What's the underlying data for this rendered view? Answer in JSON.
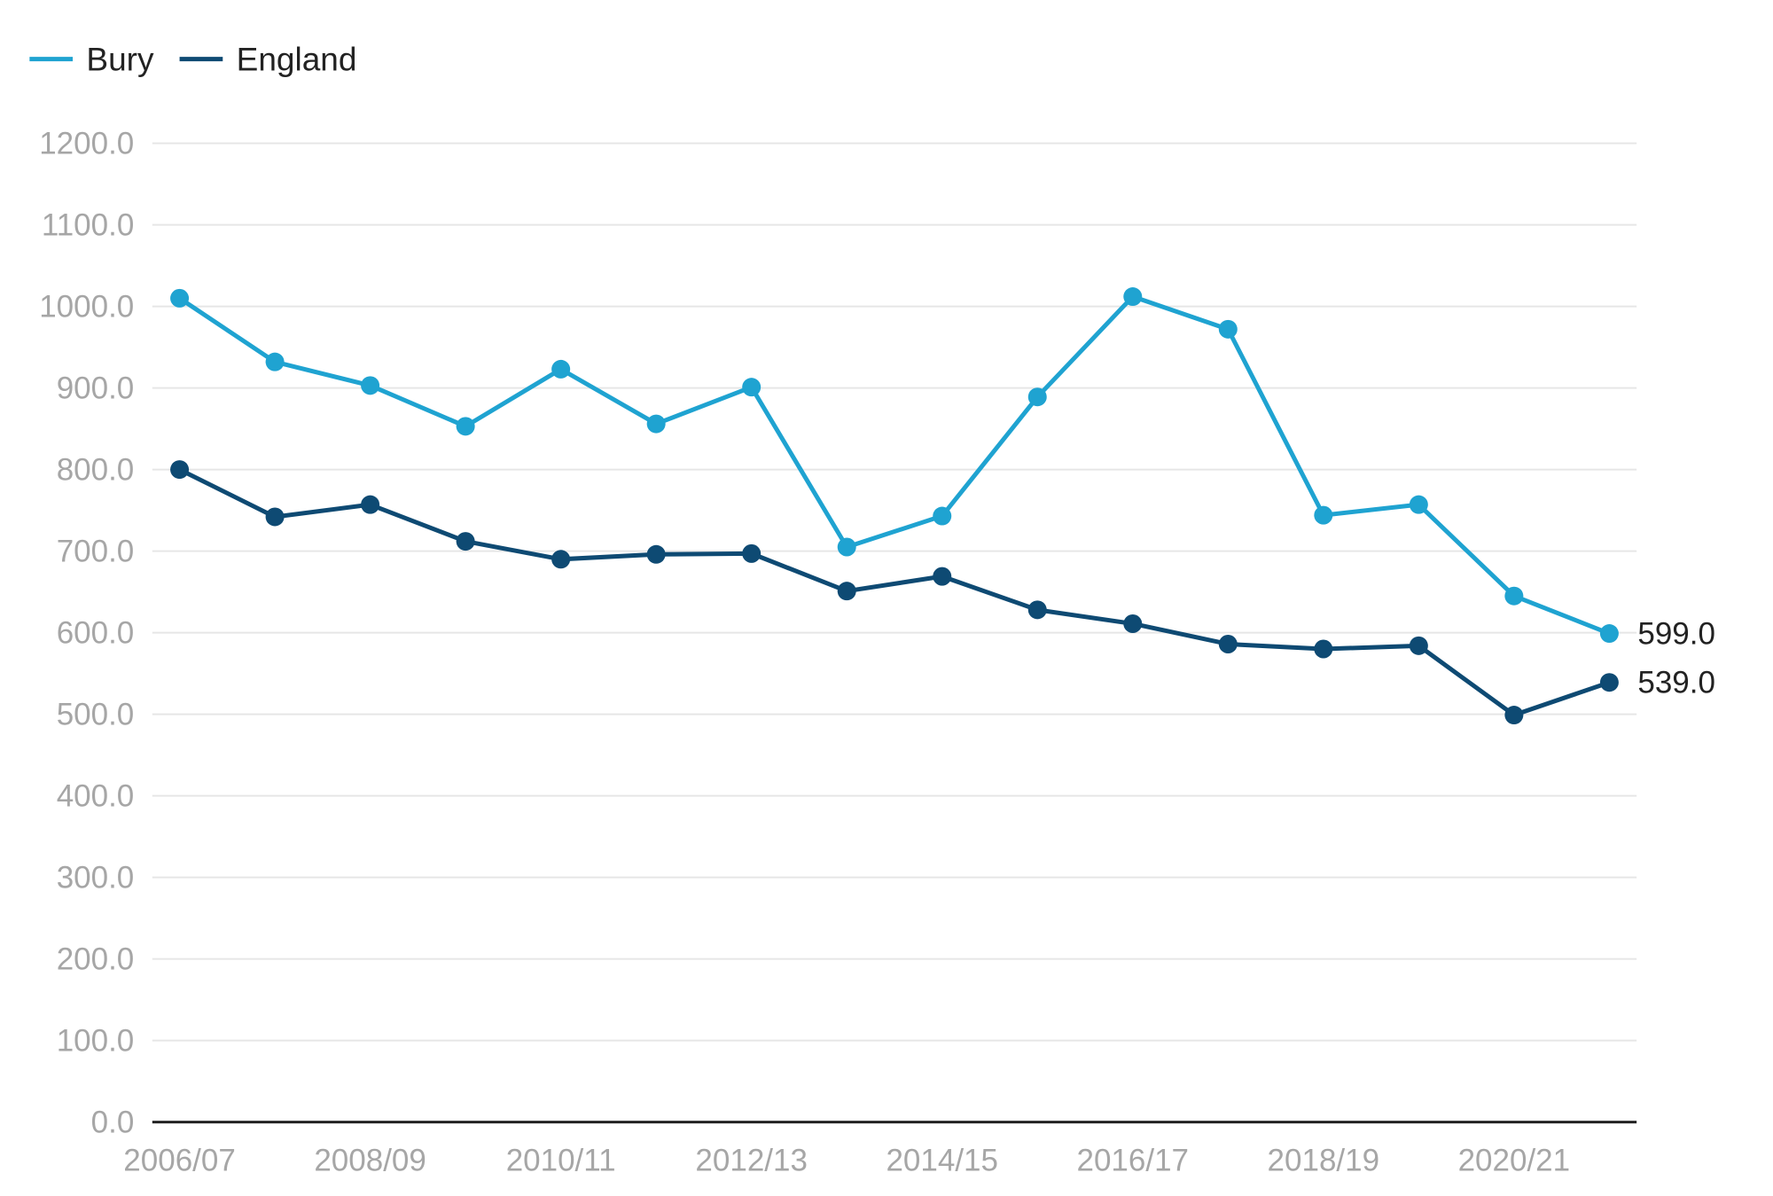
{
  "chart_data": {
    "type": "line",
    "categories": [
      "2006/07",
      "2007/08",
      "2008/09",
      "2009/10",
      "2010/11",
      "2011/12",
      "2012/13",
      "2013/14",
      "2014/15",
      "2015/16",
      "2016/17",
      "2017/18",
      "2018/19",
      "2019/20",
      "2020/21",
      "2021/22"
    ],
    "x_tick_labels": [
      "2006/07",
      "2008/09",
      "2010/11",
      "2012/13",
      "2014/15",
      "2016/17",
      "2018/19",
      "2020/21"
    ],
    "y_tick_labels": [
      "0.0",
      "100.0",
      "200.0",
      "300.0",
      "400.0",
      "500.0",
      "600.0",
      "700.0",
      "800.0",
      "900.0",
      "1000.0",
      "1100.0",
      "1200.0"
    ],
    "ylim": [
      0,
      1200
    ],
    "y_ticks": [
      0,
      100,
      200,
      300,
      400,
      500,
      600,
      700,
      800,
      900,
      1000,
      1100,
      1200
    ],
    "grid": true,
    "legend_position": "top-left",
    "series": [
      {
        "name": "Bury",
        "color": "#1fa3d1",
        "values": [
          1010,
          932,
          903,
          853,
          923,
          856,
          901,
          705,
          743,
          889,
          1012,
          972,
          744,
          757,
          645,
          599
        ],
        "end_label": "599.0"
      },
      {
        "name": "England",
        "color": "#0e4a73",
        "values": [
          800,
          742,
          757,
          712,
          690,
          696,
          697,
          651,
          669,
          628,
          611,
          586,
          580,
          584,
          499,
          539
        ],
        "end_label": "539.0"
      }
    ],
    "axis_color": "#222222",
    "grid_color": "#e6e6e6"
  }
}
